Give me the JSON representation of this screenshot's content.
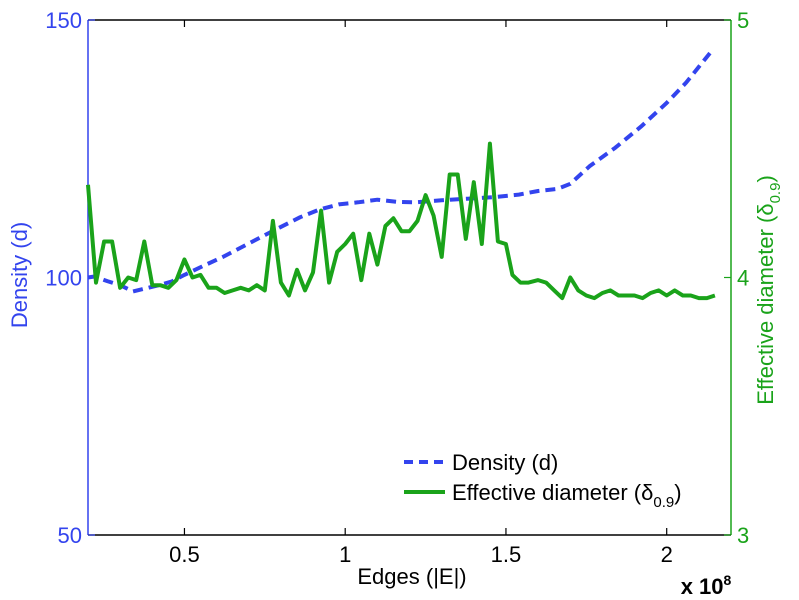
{
  "chart_data": {
    "type": "line",
    "xlabel": "Edges (|E|)",
    "x_multiplier": "x 10",
    "x_multiplier_exp": "8",
    "xlim": [
      0.2,
      2.2
    ],
    "x_ticks": [
      {
        "value": 0.5,
        "label": "0.5"
      },
      {
        "value": 1.0,
        "label": "1"
      },
      {
        "value": 1.5,
        "label": "1.5"
      },
      {
        "value": 2.0,
        "label": "2"
      }
    ],
    "y_left": {
      "label": "Density (d)",
      "lim": [
        50,
        150
      ],
      "ticks": [
        {
          "value": 50,
          "label": "50"
        },
        {
          "value": 100,
          "label": "100"
        },
        {
          "value": 150,
          "label": "150"
        }
      ],
      "color": "#3344ee"
    },
    "y_right": {
      "label_main": "Effective diameter (δ",
      "label_sub": "0.9",
      "label_end": ")",
      "lim": [
        3,
        5
      ],
      "ticks": [
        {
          "value": 3,
          "label": "3"
        },
        {
          "value": 4,
          "label": "4"
        },
        {
          "value": 5,
          "label": "5"
        }
      ],
      "color": "#1aa31a"
    },
    "series": [
      {
        "name": "Density (d)",
        "axis": "left",
        "style": "dashed",
        "color": "#3344ee",
        "x": [
          0.2,
          0.22,
          0.26,
          0.3,
          0.34,
          0.38,
          0.42,
          0.46,
          0.5,
          0.56,
          0.62,
          0.7,
          0.78,
          0.86,
          0.92,
          0.98,
          1.04,
          1.1,
          1.16,
          1.22,
          1.3,
          1.38,
          1.46,
          1.54,
          1.6,
          1.66,
          1.7,
          1.76,
          1.84,
          1.92,
          2.0,
          2.06,
          2.14
        ],
        "values": [
          100.0,
          100.2,
          99.3,
          98.5,
          97.3,
          97.9,
          98.5,
          99.2,
          100.5,
          102.3,
          104.0,
          106.6,
          109.2,
          111.7,
          113.2,
          114.2,
          114.6,
          115.1,
          114.7,
          114.6,
          115.0,
          115.3,
          115.6,
          116.1,
          116.8,
          117.2,
          118.2,
          121.6,
          125.2,
          129.3,
          133.9,
          137.8,
          144.0
        ]
      },
      {
        "name": "Effective diameter (δ0.9)",
        "axis": "right",
        "style": "solid",
        "color": "#1aa31a",
        "x": [
          0.2,
          0.225,
          0.25,
          0.275,
          0.3,
          0.325,
          0.35,
          0.375,
          0.4,
          0.425,
          0.45,
          0.475,
          0.5,
          0.525,
          0.55,
          0.575,
          0.6,
          0.625,
          0.65,
          0.675,
          0.7,
          0.725,
          0.75,
          0.775,
          0.8,
          0.825,
          0.85,
          0.875,
          0.9,
          0.925,
          0.95,
          0.975,
          1.0,
          1.025,
          1.05,
          1.075,
          1.1,
          1.125,
          1.15,
          1.175,
          1.2,
          1.225,
          1.25,
          1.275,
          1.3,
          1.325,
          1.35,
          1.375,
          1.4,
          1.425,
          1.45,
          1.475,
          1.5,
          1.52,
          1.545,
          1.57,
          1.6,
          1.625,
          1.65,
          1.675,
          1.7,
          1.725,
          1.75,
          1.775,
          1.8,
          1.825,
          1.85,
          1.875,
          1.9,
          1.925,
          1.95,
          1.975,
          2.0,
          2.025,
          2.05,
          2.075,
          2.1,
          2.125,
          2.15
        ],
        "values": [
          4.36,
          3.98,
          4.14,
          4.14,
          3.96,
          4.0,
          3.99,
          4.14,
          3.97,
          3.97,
          3.96,
          3.99,
          4.07,
          4.0,
          4.01,
          3.96,
          3.96,
          3.94,
          3.95,
          3.96,
          3.95,
          3.97,
          3.95,
          4.22,
          3.98,
          3.93,
          4.03,
          3.95,
          4.02,
          4.26,
          3.98,
          4.1,
          4.13,
          4.17,
          3.99,
          4.17,
          4.05,
          4.2,
          4.23,
          4.18,
          4.18,
          4.22,
          4.32,
          4.24,
          4.08,
          4.4,
          4.4,
          4.15,
          4.37,
          4.13,
          4.52,
          4.14,
          4.13,
          4.01,
          3.98,
          3.98,
          3.99,
          3.98,
          3.95,
          3.92,
          4.0,
          3.95,
          3.93,
          3.92,
          3.94,
          3.95,
          3.93,
          3.93,
          3.93,
          3.92,
          3.94,
          3.95,
          3.93,
          3.95,
          3.93,
          3.93,
          3.92,
          3.92,
          3.93
        ]
      }
    ],
    "legend": {
      "position": "bottom-right",
      "entries": [
        {
          "label_main": "Density (d)",
          "label_sub": "",
          "label_end": ""
        },
        {
          "label_main": "Effective diameter (δ",
          "label_sub": "0.9",
          "label_end": ")"
        }
      ]
    }
  }
}
